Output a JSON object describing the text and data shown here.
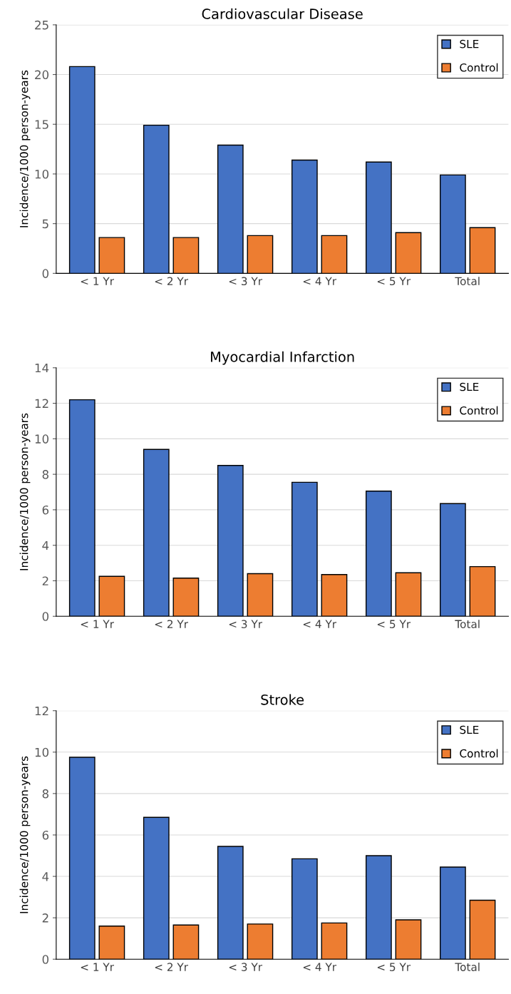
{
  "chart_data": [
    {
      "type": "bar",
      "title": "Cardiovascular Disease",
      "ylabel": "Incidence/1000 person-years",
      "categories": [
        "< 1 Yr",
        "< 2 Yr",
        "< 3 Yr",
        "< 4 Yr",
        "< 5 Yr",
        "Total"
      ],
      "ylim": [
        0,
        25
      ],
      "yticks": [
        0,
        5,
        10,
        15,
        20,
        25
      ],
      "grid": "y",
      "legend": "top right",
      "series": [
        {
          "name": "SLE",
          "color": "#4472c4",
          "values": [
            20.8,
            14.9,
            12.9,
            11.4,
            11.2,
            9.9
          ]
        },
        {
          "name": "Control",
          "color": "#ed7d31",
          "values": [
            3.6,
            3.6,
            3.8,
            3.8,
            4.1,
            4.6
          ]
        }
      ]
    },
    {
      "type": "bar",
      "title": "Myocardial Infarction",
      "ylabel": "Incidence/1000 person-years",
      "categories": [
        "< 1 Yr",
        "< 2 Yr",
        "< 3 Yr",
        "< 4 Yr",
        "< 5 Yr",
        "Total"
      ],
      "ylim": [
        0,
        14
      ],
      "yticks": [
        0,
        2,
        4,
        6,
        8,
        10,
        12,
        14
      ],
      "grid": "y",
      "legend": "top right",
      "series": [
        {
          "name": "SLE",
          "color": "#4472c4",
          "values": [
            12.2,
            9.4,
            8.5,
            7.55,
            7.05,
            6.35
          ]
        },
        {
          "name": "Control",
          "color": "#ed7d31",
          "values": [
            2.25,
            2.15,
            2.4,
            2.35,
            2.45,
            2.8
          ]
        }
      ]
    },
    {
      "type": "bar",
      "title": "Stroke",
      "ylabel": "Incidence/1000 person-years",
      "categories": [
        "< 1 Yr",
        "< 2 Yr",
        "< 3 Yr",
        "< 4 Yr",
        "< 5 Yr",
        "Total"
      ],
      "ylim": [
        0,
        12
      ],
      "yticks": [
        0,
        2,
        4,
        6,
        8,
        10,
        12
      ],
      "grid": "y",
      "legend": "top right",
      "series": [
        {
          "name": "SLE",
          "color": "#4472c4",
          "values": [
            9.75,
            6.85,
            5.45,
            4.85,
            5.0,
            4.45
          ]
        },
        {
          "name": "Control",
          "color": "#ed7d31",
          "values": [
            1.6,
            1.65,
            1.7,
            1.75,
            1.9,
            2.85
          ]
        }
      ]
    }
  ]
}
